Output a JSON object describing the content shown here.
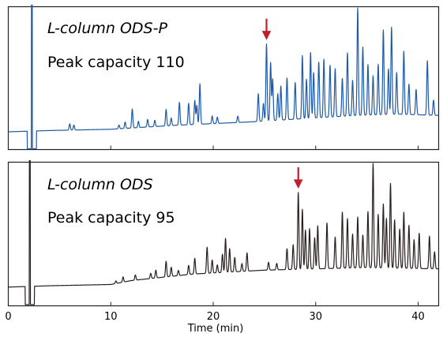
{
  "chart_data": {
    "type": "line",
    "xlabel": "Time (min)",
    "xlim": [
      0,
      42
    ],
    "xticks": [
      0,
      10,
      20,
      30,
      40
    ],
    "grid": false,
    "panels": [
      {
        "name": "L-column ODS-P",
        "title": "L-column ODS-P",
        "subtitle": "Peak capacity 110",
        "color": "#1f5aa6",
        "marker_x": 25.2,
        "baseline": {
          "x": [
            0,
            4,
            10,
            16,
            24,
            28,
            34,
            38,
            42
          ],
          "y": [
            0.05,
            0.06,
            0.07,
            0.1,
            0.13,
            0.15,
            0.18,
            0.19,
            0.18
          ]
        },
        "dead_time_peak": {
          "x": 2.3,
          "y": 1.1
        },
        "peaks": [
          [
            6.0,
            0.05
          ],
          [
            6.4,
            0.04
          ],
          [
            10.8,
            0.03
          ],
          [
            11.4,
            0.05
          ],
          [
            12.1,
            0.15
          ],
          [
            12.7,
            0.05
          ],
          [
            13.6,
            0.06
          ],
          [
            14.3,
            0.05
          ],
          [
            15.4,
            0.13
          ],
          [
            15.9,
            0.06
          ],
          [
            16.7,
            0.18
          ],
          [
            17.6,
            0.17
          ],
          [
            18.2,
            0.19
          ],
          [
            18.4,
            0.15
          ],
          [
            18.7,
            0.32
          ],
          [
            19.9,
            0.06
          ],
          [
            20.4,
            0.05
          ],
          [
            22.4,
            0.05
          ],
          [
            24.4,
            0.22
          ],
          [
            24.9,
            0.14
          ],
          [
            25.2,
            0.61
          ],
          [
            25.6,
            0.46
          ],
          [
            25.8,
            0.33
          ],
          [
            26.3,
            0.21
          ],
          [
            26.6,
            0.27
          ],
          [
            27.2,
            0.33
          ],
          [
            28.0,
            0.29
          ],
          [
            28.7,
            0.5
          ],
          [
            29.1,
            0.31
          ],
          [
            29.5,
            0.52
          ],
          [
            29.8,
            0.36
          ],
          [
            30.3,
            0.44
          ],
          [
            30.8,
            0.46
          ],
          [
            31.4,
            0.41
          ],
          [
            31.9,
            0.38
          ],
          [
            32.6,
            0.3
          ],
          [
            33.1,
            0.5
          ],
          [
            33.6,
            0.28
          ],
          [
            34.1,
            0.85
          ],
          [
            34.6,
            0.54
          ],
          [
            35.1,
            0.4
          ],
          [
            35.6,
            0.31
          ],
          [
            36.1,
            0.4
          ],
          [
            36.6,
            0.67
          ],
          [
            37.1,
            0.36
          ],
          [
            37.4,
            0.69
          ],
          [
            37.9,
            0.33
          ],
          [
            38.6,
            0.5
          ],
          [
            39.1,
            0.24
          ],
          [
            39.8,
            0.2
          ],
          [
            40.9,
            0.43
          ],
          [
            41.5,
            0.12
          ]
        ]
      },
      {
        "name": "L-column ODS",
        "title": "L-column ODS",
        "subtitle": "Peak capacity 95",
        "color": "#2a1f1f",
        "marker_x": 28.3,
        "baseline": {
          "x": [
            0,
            4,
            10,
            12,
            18,
            25,
            30,
            35,
            42
          ],
          "y": [
            0.05,
            0.06,
            0.07,
            0.1,
            0.15,
            0.18,
            0.19,
            0.2,
            0.19
          ]
        },
        "dead_time_peak": {
          "x": 2.1,
          "y": 1.1
        },
        "peaks": [
          [
            10.5,
            0.02
          ],
          [
            11.2,
            0.04
          ],
          [
            12.4,
            0.04
          ],
          [
            13.9,
            0.04
          ],
          [
            14.4,
            0.06
          ],
          [
            15.4,
            0.12
          ],
          [
            15.9,
            0.07
          ],
          [
            16.6,
            0.04
          ],
          [
            17.6,
            0.07
          ],
          [
            18.2,
            0.12
          ],
          [
            19.4,
            0.2
          ],
          [
            19.9,
            0.1
          ],
          [
            20.4,
            0.06
          ],
          [
            20.9,
            0.14
          ],
          [
            21.2,
            0.26
          ],
          [
            21.6,
            0.18
          ],
          [
            22.1,
            0.11
          ],
          [
            22.8,
            0.06
          ],
          [
            23.3,
            0.14
          ],
          [
            25.4,
            0.06
          ],
          [
            26.2,
            0.05
          ],
          [
            27.2,
            0.16
          ],
          [
            27.8,
            0.19
          ],
          [
            28.3,
            0.59
          ],
          [
            28.7,
            0.46
          ],
          [
            29.0,
            0.3
          ],
          [
            29.4,
            0.31
          ],
          [
            29.9,
            0.24
          ],
          [
            30.2,
            0.33
          ],
          [
            31.1,
            0.35
          ],
          [
            31.9,
            0.24
          ],
          [
            32.6,
            0.43
          ],
          [
            33.1,
            0.38
          ],
          [
            33.6,
            0.26
          ],
          [
            34.1,
            0.39
          ],
          [
            34.6,
            0.25
          ],
          [
            35.1,
            0.43
          ],
          [
            35.6,
            0.8
          ],
          [
            36.1,
            0.41
          ],
          [
            36.6,
            0.49
          ],
          [
            36.9,
            0.38
          ],
          [
            37.3,
            0.65
          ],
          [
            37.7,
            0.37
          ],
          [
            38.2,
            0.3
          ],
          [
            38.6,
            0.43
          ],
          [
            39.1,
            0.33
          ],
          [
            39.6,
            0.22
          ],
          [
            40.1,
            0.27
          ],
          [
            41.1,
            0.25
          ],
          [
            41.6,
            0.13
          ]
        ]
      }
    ]
  }
}
